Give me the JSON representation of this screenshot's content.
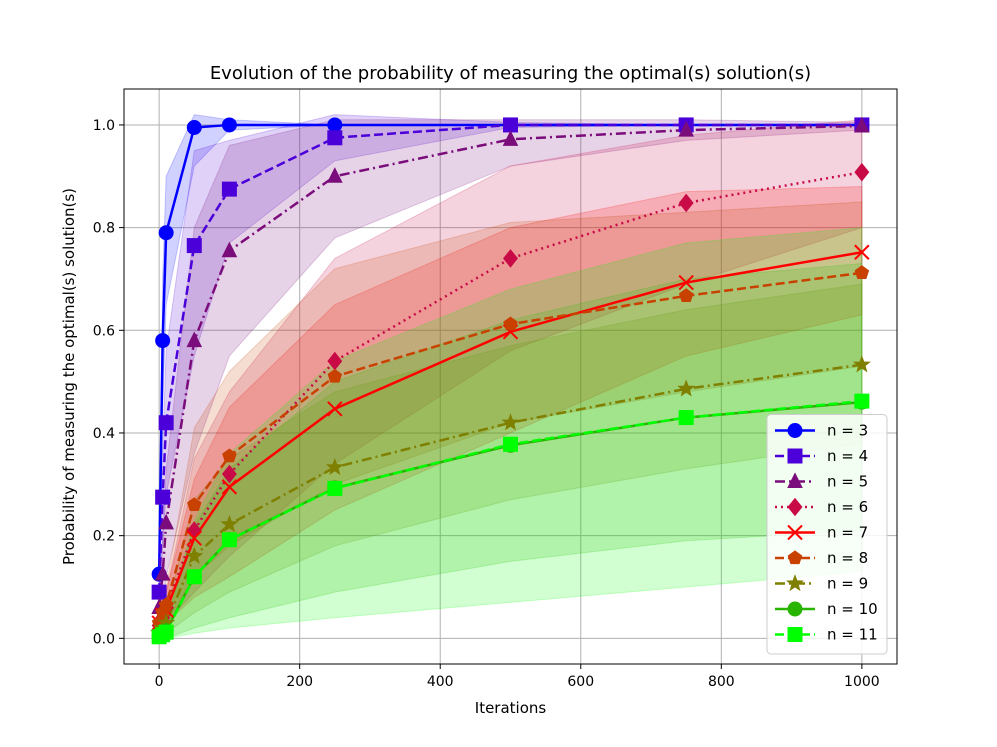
{
  "chart_data": {
    "type": "line",
    "title": "Evolution of the probability of measuring the optimal(s) solution(s)",
    "xlabel": "Iterations",
    "ylabel": "Probability of measuring the optimal(s) solution(s)",
    "xlim": [
      -50,
      1050
    ],
    "ylim": [
      -0.05,
      1.07
    ],
    "xticks": [
      0,
      200,
      400,
      600,
      800,
      1000
    ],
    "xtick_labels": [
      "0",
      "200",
      "400",
      "600",
      "800",
      "1000"
    ],
    "yticks": [
      0.0,
      0.2,
      0.4,
      0.6,
      0.8,
      1.0
    ],
    "ytick_labels": [
      "0.0",
      "0.2",
      "0.4",
      "0.6",
      "0.8",
      "1.0"
    ],
    "grid": true,
    "legend_position": "lower-right",
    "x": [
      0,
      5,
      10,
      50,
      100,
      250,
      500,
      750,
      1000
    ],
    "series": [
      {
        "name": "n = 3",
        "color": "#0000ff",
        "dash": "solid",
        "marker": "circle",
        "values": [
          0.125,
          0.58,
          0.79,
          0.995,
          1.0,
          1.0,
          1.0,
          1.0,
          1.0
        ],
        "band_lower": [
          0.1,
          0.45,
          0.65,
          0.92,
          0.99,
          1.0,
          1.0,
          1.0,
          1.0
        ],
        "band_upper": [
          0.15,
          0.7,
          0.9,
          1.02,
          1.01,
          1.0,
          1.0,
          1.0,
          1.0
        ]
      },
      {
        "name": "n = 4",
        "color": "#4b00d9",
        "dash": "dashed",
        "marker": "square",
        "values": [
          0.09,
          0.275,
          0.42,
          0.765,
          0.875,
          0.975,
          1.0,
          1.0,
          1.0
        ],
        "band_lower": [
          0.06,
          0.18,
          0.28,
          0.55,
          0.77,
          0.93,
          0.995,
          1.0,
          1.0
        ],
        "band_upper": [
          0.12,
          0.37,
          0.56,
          0.95,
          0.97,
          1.02,
          1.005,
          1.0,
          1.0
        ]
      },
      {
        "name": "n = 5",
        "color": "#7b0c7b",
        "dash": "dashdot",
        "marker": "triangle",
        "values": [
          0.06,
          0.125,
          0.225,
          0.58,
          0.755,
          0.9,
          0.972,
          0.99,
          0.998
        ],
        "band_lower": [
          0.03,
          0.06,
          0.12,
          0.36,
          0.55,
          0.78,
          0.92,
          0.97,
          0.99
        ],
        "band_upper": [
          0.09,
          0.19,
          0.33,
          0.8,
          0.96,
          1.01,
          1.01,
          1.01,
          1.005
        ]
      },
      {
        "name": "n = 6",
        "color": "#c80a47",
        "dash": "dotted",
        "marker": "diamond",
        "values": [
          0.025,
          0.04,
          0.06,
          0.21,
          0.32,
          0.54,
          0.74,
          0.848,
          0.908
        ],
        "band_lower": [
          0.01,
          0.02,
          0.03,
          0.09,
          0.16,
          0.34,
          0.56,
          0.69,
          0.8
        ],
        "band_upper": [
          0.04,
          0.06,
          0.09,
          0.35,
          0.48,
          0.74,
          0.92,
          0.98,
          1.01
        ]
      },
      {
        "name": "n = 7",
        "color": "#ff0000",
        "dash": "solid",
        "marker": "x",
        "values": [
          0.03,
          0.045,
          0.055,
          0.195,
          0.295,
          0.447,
          0.597,
          0.693,
          0.752
        ],
        "band_lower": [
          0.01,
          0.02,
          0.03,
          0.08,
          0.12,
          0.25,
          0.4,
          0.55,
          0.63
        ],
        "band_upper": [
          0.05,
          0.07,
          0.09,
          0.31,
          0.45,
          0.65,
          0.8,
          0.87,
          0.88
        ]
      },
      {
        "name": "n = 8",
        "color": "#c84100",
        "dash": "dashed",
        "marker": "pentagon",
        "values": [
          0.03,
          0.05,
          0.065,
          0.26,
          0.355,
          0.51,
          0.612,
          0.667,
          0.712
        ],
        "band_lower": [
          0.01,
          0.02,
          0.03,
          0.12,
          0.18,
          0.3,
          0.42,
          0.48,
          0.53
        ],
        "band_upper": [
          0.05,
          0.08,
          0.1,
          0.41,
          0.52,
          0.72,
          0.81,
          0.83,
          0.85
        ]
      },
      {
        "name": "n = 9",
        "color": "#7f7f00",
        "dash": "dashdot",
        "marker": "star",
        "values": [
          0.01,
          0.02,
          0.03,
          0.16,
          0.222,
          0.333,
          0.42,
          0.486,
          0.533
        ],
        "band_lower": [
          0.0,
          0.01,
          0.01,
          0.05,
          0.09,
          0.18,
          0.27,
          0.33,
          0.38
        ],
        "band_upper": [
          0.02,
          0.04,
          0.05,
          0.27,
          0.35,
          0.48,
          0.57,
          0.64,
          0.69
        ]
      },
      {
        "name": "n = 10",
        "color": "#28b400",
        "dash": "solid",
        "marker": "circle",
        "values": [
          0.005,
          0.01,
          0.015,
          0.12,
          0.192,
          0.293,
          0.376,
          0.43,
          0.46
        ],
        "band_lower": [
          0.0,
          0.0,
          0.0,
          0.02,
          0.04,
          0.09,
          0.15,
          0.19,
          0.21
        ],
        "band_upper": [
          0.01,
          0.02,
          0.03,
          0.22,
          0.33,
          0.5,
          0.62,
          0.7,
          0.73
        ]
      },
      {
        "name": "n = 11",
        "color": "#00ff00",
        "dash": "dashed",
        "marker": "square",
        "values": [
          0.003,
          0.007,
          0.012,
          0.12,
          0.192,
          0.292,
          0.378,
          0.43,
          0.462
        ],
        "band_lower": [
          0.0,
          0.0,
          0.0,
          0.01,
          0.02,
          0.04,
          0.07,
          0.1,
          0.13
        ],
        "band_upper": [
          0.01,
          0.02,
          0.03,
          0.23,
          0.36,
          0.54,
          0.68,
          0.77,
          0.8
        ]
      }
    ]
  }
}
